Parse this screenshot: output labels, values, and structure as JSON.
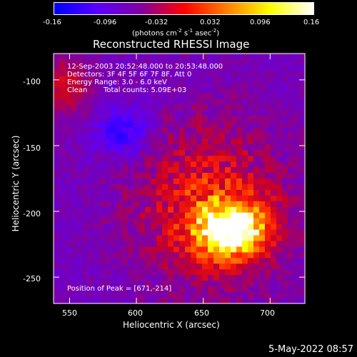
{
  "colorbar": {
    "ticks": [
      "-0.16",
      "-0.096",
      "-0.032",
      "0.032",
      "0.096",
      "0.16"
    ],
    "tick_values": [
      -0.16,
      -0.096,
      -0.032,
      0.032,
      0.096,
      0.16
    ],
    "units_text": "(photons cm",
    "units_exp1": "-2",
    "units_s": " s",
    "units_exp2": "-1",
    "units_asec": " asec",
    "units_exp3": "-2",
    "units_close": ")",
    "range": [
      -0.16,
      0.16
    ],
    "colors": [
      "#0000ff",
      "#5a00ff",
      "#8000a0",
      "#ff0000",
      "#ff8000",
      "#ffff00",
      "#ffffff"
    ]
  },
  "title": "Reconstructed RHESSI Image",
  "info": {
    "time_range": "12-Sep-2003 20:52:48.000 to 20:53:48.000",
    "detectors": "Detectors: 3F 4F 5F 6F 7F 8F, Att 0",
    "energy": "Energy Range: 3.0 - 6.0 keV",
    "method": "Clean",
    "counts": "Total counts: 5.09E+03",
    "peak": "Position of Peak = [671,-214]"
  },
  "chart_data": {
    "type": "heatmap",
    "title": "Reconstructed RHESSI Image",
    "xlabel": "Heliocentric X (arcsec)",
    "ylabel": "Heliocentric Y (arcsec)",
    "xlim": [
      538,
      726
    ],
    "ylim": [
      -270,
      -80
    ],
    "xticks": [
      550,
      600,
      650,
      700
    ],
    "yticks": [
      -250,
      -200,
      -150,
      -100
    ],
    "xtick_labels": [
      "550",
      "600",
      "650",
      "700"
    ],
    "ytick_labels": [
      "-250",
      "-200",
      "-150",
      "-100"
    ],
    "peak": [
      671,
      -214
    ],
    "color_range": [
      -0.16,
      0.16
    ]
  },
  "footer": {
    "date": "5-May-2022 08:57"
  }
}
